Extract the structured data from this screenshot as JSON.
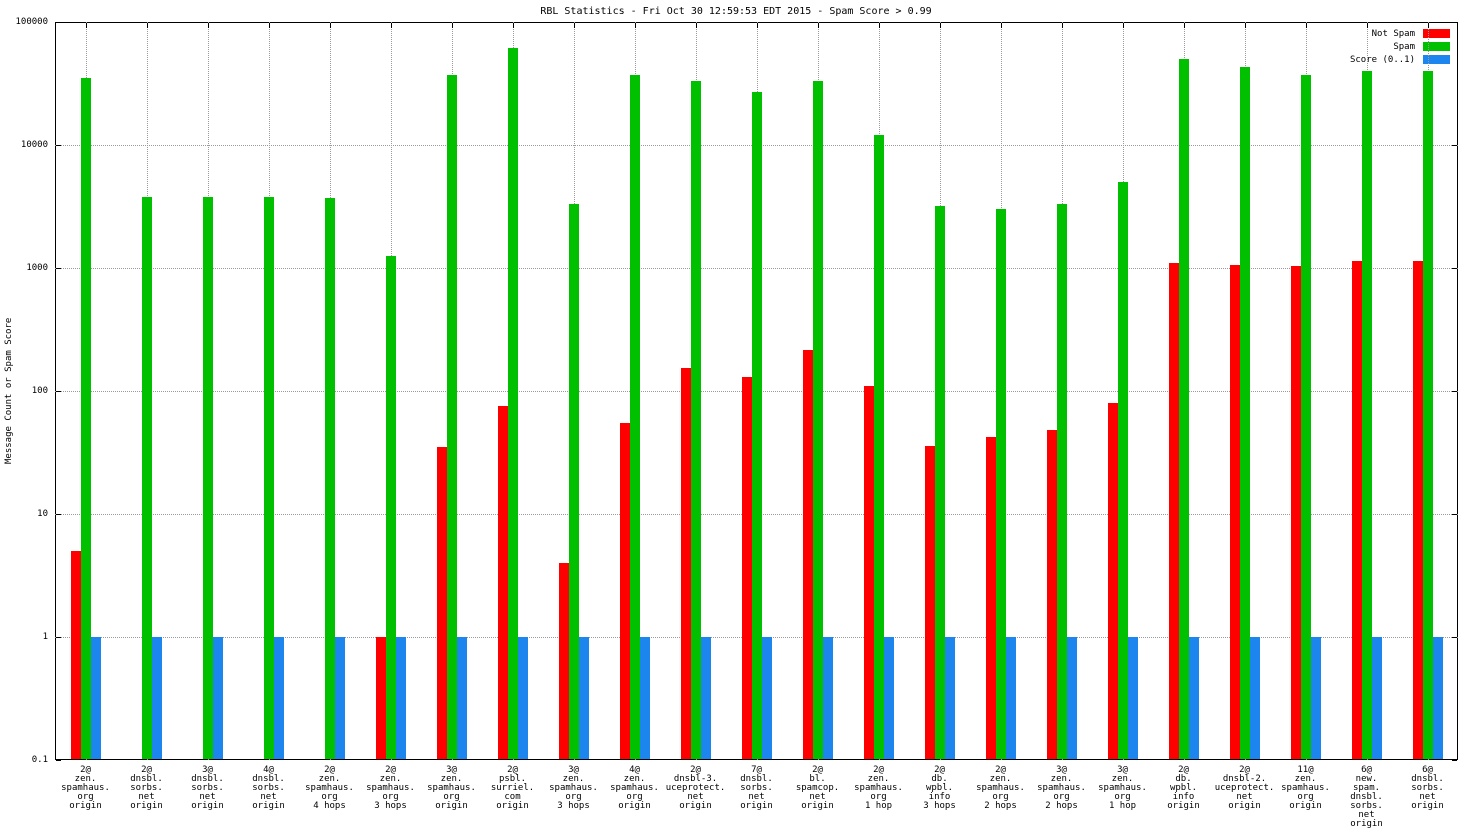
{
  "chart_data": {
    "type": "bar",
    "title": "RBL Statistics - Fri Oct 30 12:59:53 EDT 2015 - Spam Score > 0.99",
    "ylabel": "Message Count or Spam Score",
    "y_scale": "log",
    "ylim": [
      0.1,
      100000
    ],
    "yticks": [
      0.1,
      1,
      10,
      100,
      1000,
      10000,
      100000
    ],
    "grid": true,
    "legend_position": "top-right",
    "series": [
      {
        "key": "notspam",
        "name": "Not Spam",
        "color": "#ff0000",
        "values": [
          5,
          0,
          0,
          0,
          0,
          1,
          35,
          75,
          4,
          55,
          155,
          130,
          215,
          110,
          36,
          42,
          48,
          80,
          1100,
          1050,
          1030,
          1150,
          1150
        ]
      },
      {
        "key": "spam",
        "name": "Spam",
        "color": "#00c000",
        "values": [
          35000,
          3800,
          3800,
          3800,
          3700,
          1250,
          37000,
          62000,
          3300,
          37000,
          33000,
          27000,
          33000,
          12000,
          3200,
          3000,
          3300,
          5000,
          50000,
          43000,
          37000,
          40000,
          40000
        ]
      },
      {
        "key": "score",
        "name": "Score (0..1)",
        "color": "#1c86ee",
        "values": [
          1,
          1,
          1,
          1,
          1,
          1,
          1,
          1,
          1,
          1,
          1,
          1,
          1,
          1,
          1,
          1,
          1,
          1,
          1,
          1,
          1,
          1,
          1
        ]
      }
    ],
    "categories": [
      [
        "2@",
        "zen.",
        "spamhaus.",
        "org",
        "origin"
      ],
      [
        "2@",
        "dnsbl.",
        "sorbs.",
        "net",
        "origin"
      ],
      [
        "3@",
        "dnsbl.",
        "sorbs.",
        "net",
        "origin"
      ],
      [
        "4@",
        "dnsbl.",
        "sorbs.",
        "net",
        "origin"
      ],
      [
        "2@",
        "zen.",
        "spamhaus.",
        "org",
        "4 hops"
      ],
      [
        "2@",
        "zen.",
        "spamhaus.",
        "org",
        "3 hops"
      ],
      [
        "3@",
        "zen.",
        "spamhaus.",
        "org",
        "origin"
      ],
      [
        "2@",
        "psbl.",
        "surriel.",
        "com",
        "origin"
      ],
      [
        "3@",
        "zen.",
        "spamhaus.",
        "org",
        "3 hops"
      ],
      [
        "4@",
        "zen.",
        "spamhaus.",
        "org",
        "origin"
      ],
      [
        "2@",
        "dnsbl-3.",
        "uceprotect.",
        "net",
        "origin"
      ],
      [
        "7@",
        "dnsbl.",
        "sorbs.",
        "net",
        "origin"
      ],
      [
        "2@",
        "bl.",
        "spamcop.",
        "net",
        "origin"
      ],
      [
        "2@",
        "zen.",
        "spamhaus.",
        "org",
        "1 hop"
      ],
      [
        "2@",
        "db.",
        "wpbl.",
        "info",
        "3 hops"
      ],
      [
        "2@",
        "zen.",
        "spamhaus.",
        "org",
        "2 hops"
      ],
      [
        "3@",
        "zen.",
        "spamhaus.",
        "org",
        "2 hops"
      ],
      [
        "3@",
        "zen.",
        "spamhaus.",
        "org",
        "1 hop"
      ],
      [
        "2@",
        "db.",
        "wpbl.",
        "info",
        "origin"
      ],
      [
        "2@",
        "dnsbl-2.",
        "uceprotect.",
        "net",
        "origin"
      ],
      [
        "11@",
        "zen.",
        "spamhaus.",
        "org",
        "origin"
      ],
      [
        "6@",
        "new.",
        "spam.",
        "dnsbl.",
        "sorbs.",
        "net",
        "origin"
      ],
      [
        "6@",
        "dnsbl.",
        "sorbs.",
        "net",
        "origin"
      ]
    ]
  }
}
